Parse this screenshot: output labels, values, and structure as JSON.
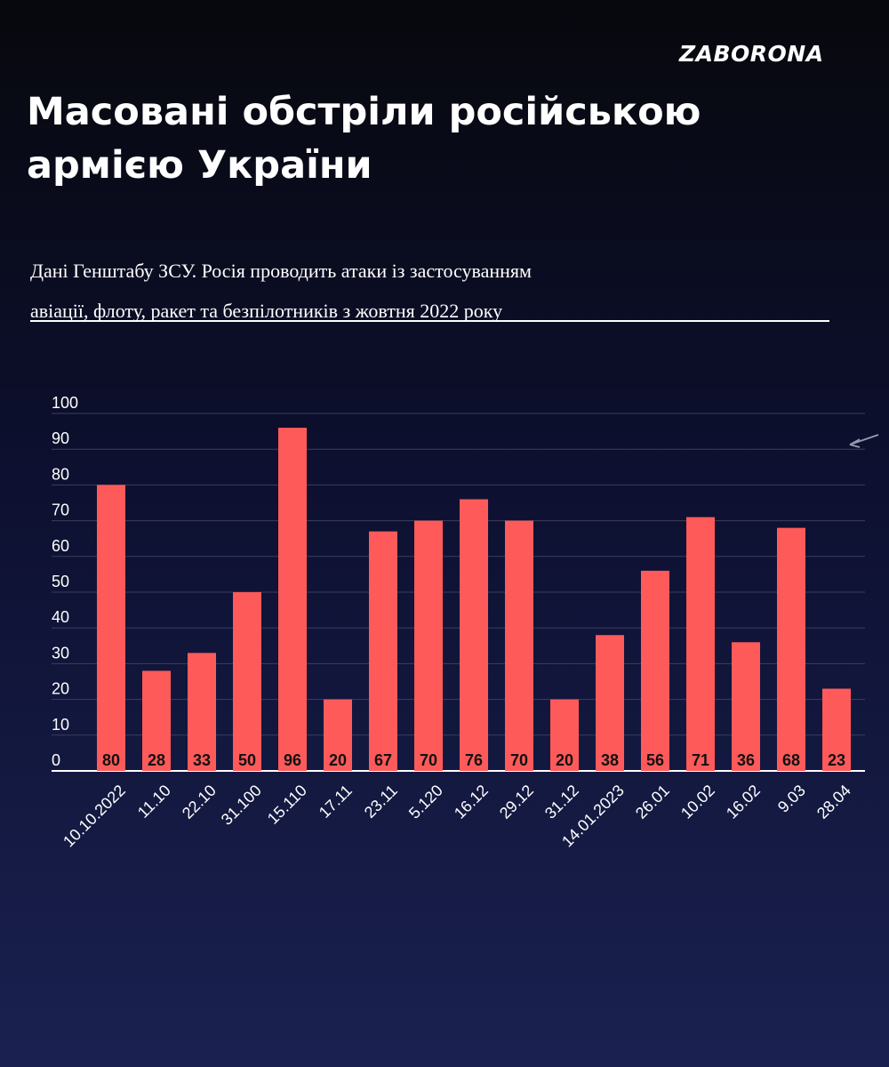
{
  "brand": "ZABORONA",
  "title": "Масовані обстріли російською армією України",
  "subtitle_line1": "Дані Генштабу ЗСУ.  Росія проводить атаки із застосуванням",
  "subtitle_line2": "авіації, флоту, ракет та безпілотників з жовтня 2022 року",
  "colors": {
    "bar": "#ff5a5a",
    "grid": "#3a3f5c",
    "axis": "#ffffff",
    "value_label": "#111111"
  },
  "chart_data": {
    "type": "bar",
    "categories": [
      "10.10.2022",
      "11.10",
      "22.10",
      "31.100",
      "15.110",
      "17.11",
      "23.11",
      "5.120",
      "16.12",
      "29.12",
      "31.12",
      "14.01.2023",
      "26.01",
      "10.02",
      "16.02",
      "9.03",
      "28.04"
    ],
    "values": [
      80,
      28,
      33,
      50,
      96,
      20,
      67,
      70,
      76,
      70,
      20,
      38,
      56,
      71,
      36,
      68,
      23
    ],
    "ylim": [
      0,
      100
    ],
    "yticks": [
      0,
      10,
      20,
      30,
      40,
      50,
      60,
      70,
      80,
      90,
      100
    ],
    "grid": true,
    "data_labels": true
  }
}
